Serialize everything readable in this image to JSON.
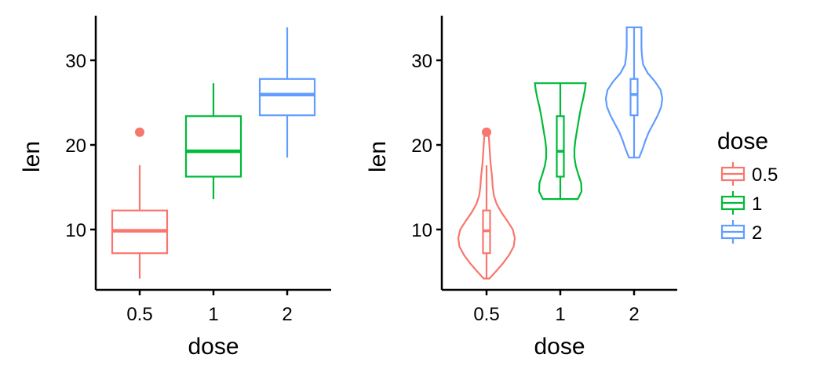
{
  "chart_data": [
    {
      "type": "box",
      "xlabel": "dose",
      "ylabel": "len",
      "categories": [
        "0.5",
        "1",
        "2"
      ],
      "ylim": [
        3,
        35
      ],
      "yticks": [
        10,
        20,
        30
      ],
      "grid": false,
      "boxes": [
        {
          "category": "0.5",
          "whisker_low": 4.2,
          "q1": 7.2,
          "median": 9.85,
          "q3": 12.25,
          "whisker_high": 17.6,
          "outliers": [
            21.5
          ]
        },
        {
          "category": "1",
          "whisker_low": 13.6,
          "q1": 16.25,
          "median": 19.25,
          "q3": 23.4,
          "whisker_high": 27.3,
          "outliers": []
        },
        {
          "category": "2",
          "whisker_low": 18.5,
          "q1": 23.5,
          "median": 25.95,
          "q3": 27.8,
          "whisker_high": 33.9,
          "outliers": []
        }
      ]
    },
    {
      "type": "violin",
      "xlabel": "dose",
      "ylabel": "len",
      "categories": [
        "0.5",
        "1",
        "2"
      ],
      "ylim": [
        3,
        35
      ],
      "yticks": [
        10,
        20,
        30
      ],
      "grid": false,
      "legend_placement": "right",
      "violins": [
        {
          "category": "0.5",
          "profile": [
            [
              4.2,
              0.1
            ],
            [
              5,
              0.32
            ],
            [
              6,
              0.58
            ],
            [
              7,
              0.8
            ],
            [
              8,
              0.96
            ],
            [
              9,
              1.0
            ],
            [
              10,
              0.93
            ],
            [
              11,
              0.74
            ],
            [
              12,
              0.53
            ],
            [
              13,
              0.36
            ],
            [
              14,
              0.26
            ],
            [
              15,
              0.22
            ],
            [
              16,
              0.2
            ],
            [
              17,
              0.17
            ],
            [
              18,
              0.14
            ],
            [
              19,
              0.12
            ],
            [
              20,
              0.1
            ],
            [
              21,
              0.08
            ],
            [
              21.5,
              0.06
            ]
          ],
          "box": {
            "whisker_low": 4.2,
            "q1": 7.2,
            "median": 9.85,
            "q3": 12.25,
            "whisker_high": 17.6,
            "outliers": [
              21.5
            ]
          }
        },
        {
          "category": "1",
          "profile": [
            [
              13.6,
              0.62
            ],
            [
              14.5,
              0.75
            ],
            [
              15.5,
              0.74
            ],
            [
              16.5,
              0.64
            ],
            [
              17.5,
              0.55
            ],
            [
              18.5,
              0.5
            ],
            [
              19.5,
              0.5
            ],
            [
              20.5,
              0.53
            ],
            [
              21.5,
              0.58
            ],
            [
              22.5,
              0.63
            ],
            [
              23.5,
              0.68
            ],
            [
              24.5,
              0.74
            ],
            [
              25.5,
              0.81
            ],
            [
              26.5,
              0.87
            ],
            [
              27.3,
              0.9
            ]
          ],
          "box": {
            "whisker_low": 13.6,
            "q1": 16.25,
            "median": 19.25,
            "q3": 23.4,
            "whisker_high": 27.3,
            "outliers": []
          }
        },
        {
          "category": "2",
          "profile": [
            [
              18.5,
              0.18
            ],
            [
              19.5,
              0.3
            ],
            [
              20.5,
              0.4
            ],
            [
              21.5,
              0.52
            ],
            [
              22.5,
              0.68
            ],
            [
              23.5,
              0.84
            ],
            [
              24.5,
              0.96
            ],
            [
              25.5,
              1.0
            ],
            [
              26.5,
              0.94
            ],
            [
              27.5,
              0.74
            ],
            [
              28.5,
              0.48
            ],
            [
              29.5,
              0.32
            ],
            [
              30.5,
              0.28
            ],
            [
              31.5,
              0.26
            ],
            [
              32.5,
              0.26
            ],
            [
              33.5,
              0.26
            ],
            [
              33.9,
              0.26
            ]
          ],
          "box": {
            "whisker_low": 18.5,
            "q1": 23.5,
            "median": 25.95,
            "q3": 27.8,
            "whisker_high": 33.9,
            "outliers": []
          }
        }
      ]
    }
  ],
  "legend": {
    "title": "dose",
    "entries": [
      {
        "label": "0.5",
        "color": "#F8766D"
      },
      {
        "label": "1",
        "color": "#00BA38"
      },
      {
        "label": "2",
        "color": "#619CFF"
      }
    ]
  },
  "colors": {
    "0.5": "#F8766D",
    "1": "#00BA38",
    "2": "#619CFF",
    "axis": "#000000"
  }
}
